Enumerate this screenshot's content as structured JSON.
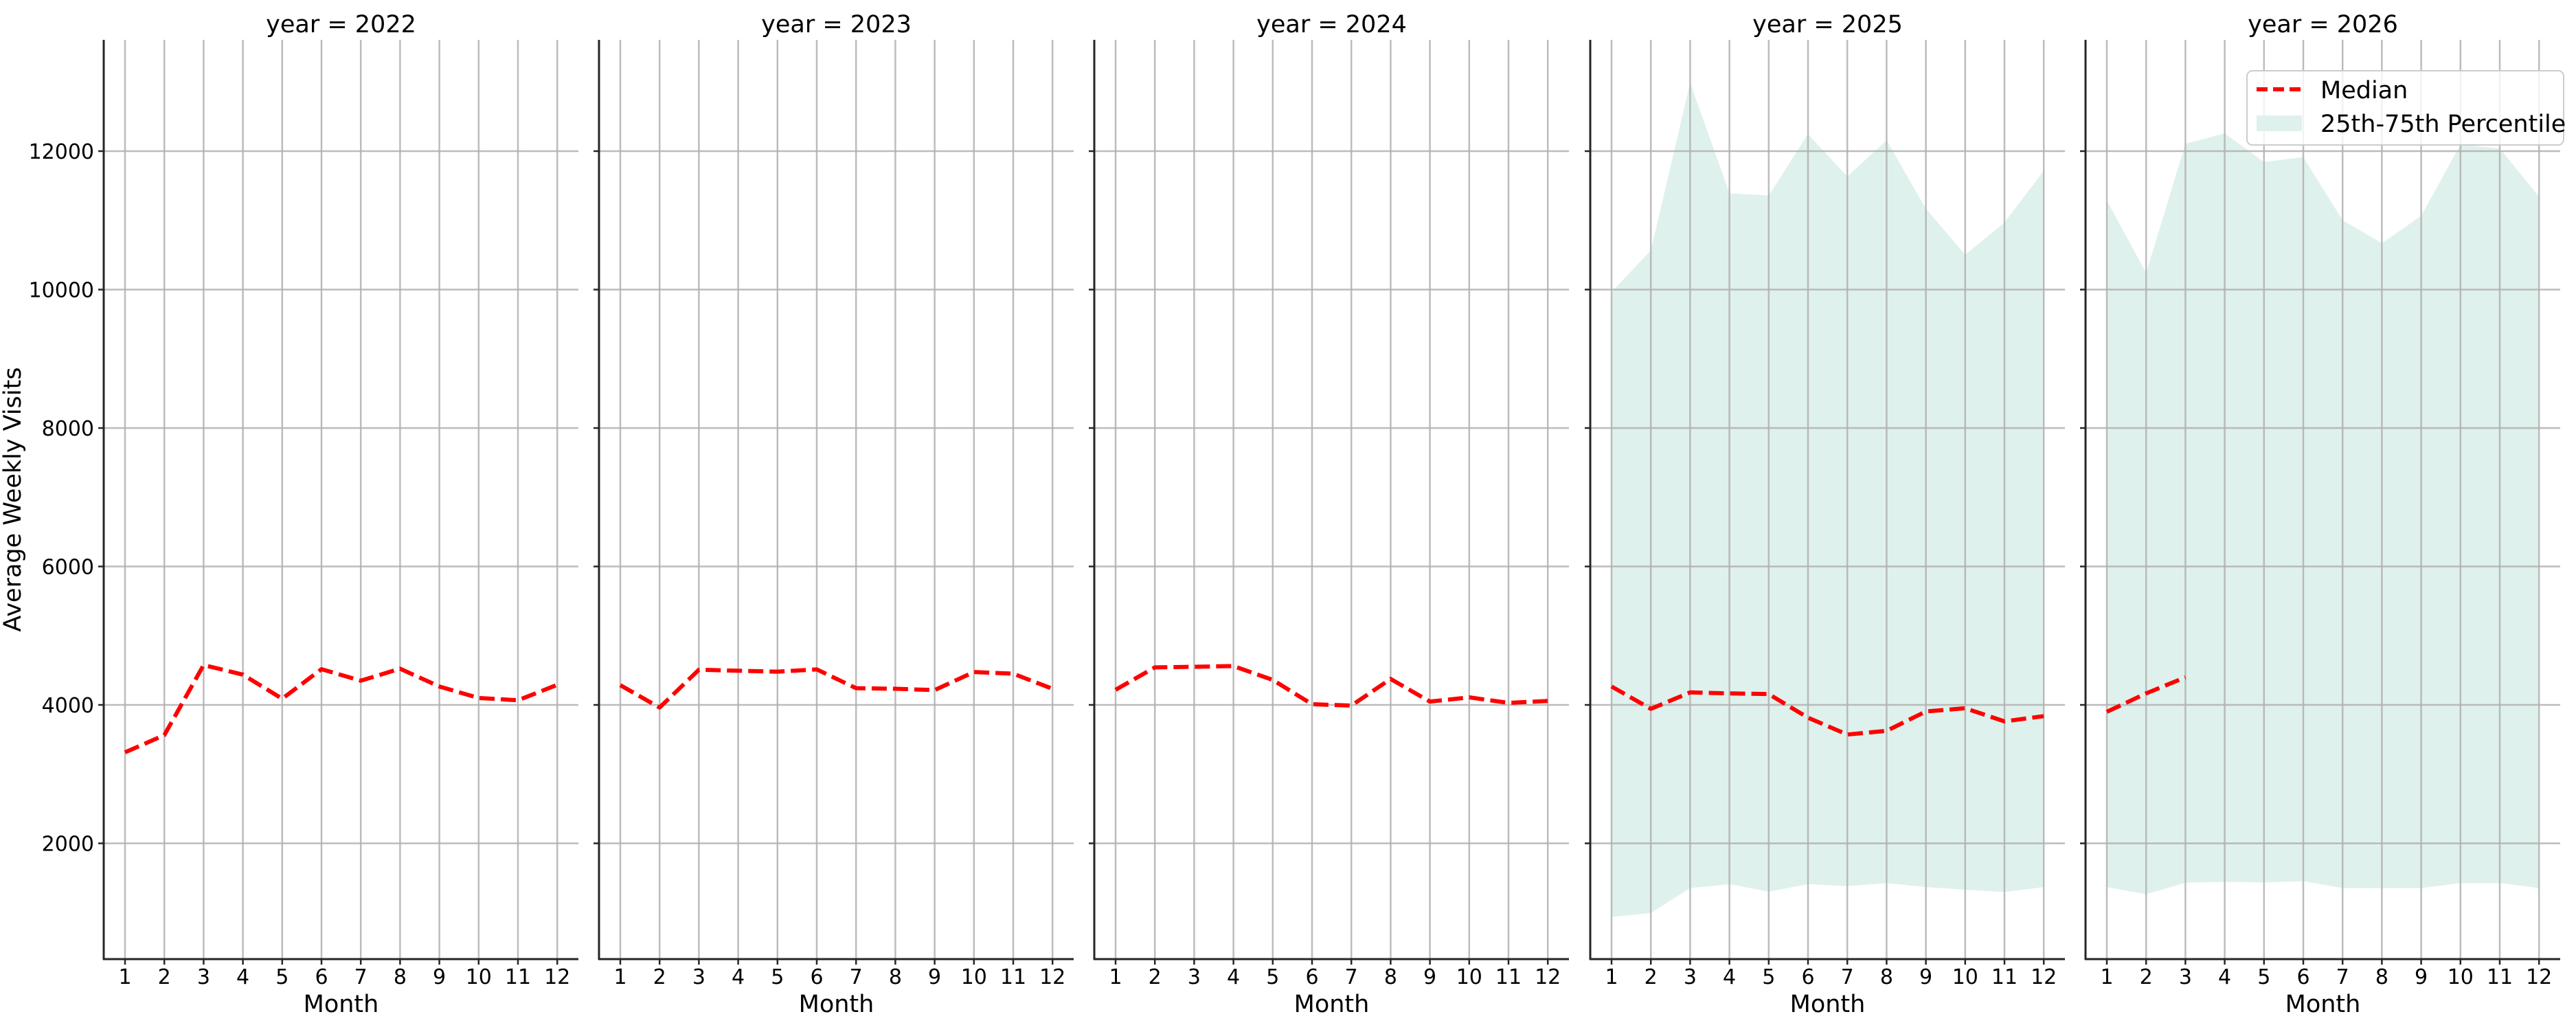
{
  "figure": {
    "ylabel": "Average Weekly Visits",
    "xlabel": "Month",
    "colors": {
      "median": "#ff0000",
      "band": "#dff1ec",
      "grid": "#b0b0b0",
      "spine": "#262626",
      "legend_border": "#cccccc"
    },
    "legend": {
      "items": [
        {
          "label": "Median",
          "kind": "line"
        },
        {
          "label": "25th-75th Percentile",
          "kind": "patch"
        }
      ]
    }
  },
  "chart_data": {
    "type": "line",
    "title": "",
    "xlabel": "Month",
    "ylabel": "Average Weekly Visits",
    "x": [
      1,
      2,
      3,
      4,
      5,
      6,
      7,
      8,
      9,
      10,
      11,
      12
    ],
    "yticks": [
      2000,
      4000,
      6000,
      8000,
      10000,
      12000
    ],
    "ylim": [
      330,
      13600
    ],
    "grid": true,
    "legend_position": "upper right (last panel)",
    "facets": [
      {
        "title": "year = 2022",
        "median": [
          3315,
          3563,
          4576,
          4437,
          4089,
          4516,
          4350,
          4523,
          4266,
          4100,
          4067,
          4290
        ],
        "p25": null,
        "p75": null
      },
      {
        "title": "year = 2023",
        "median": [
          4285,
          3962,
          4508,
          4494,
          4480,
          4513,
          4242,
          4233,
          4214,
          4475,
          4451,
          4233
        ],
        "p25": null,
        "p75": null
      },
      {
        "title": "year = 2024",
        "median": [
          4218,
          4542,
          4551,
          4561,
          4361,
          4010,
          3990,
          4375,
          4048,
          4109,
          4029,
          4057
        ],
        "p25": null,
        "p75": null
      },
      {
        "title": "year = 2025",
        "median": [
          4266,
          3943,
          4181,
          4166,
          4157,
          3815,
          3572,
          3625,
          3905,
          3952,
          3762,
          3838
        ],
        "p25": [
          936,
          993,
          1354,
          1411,
          1302,
          1411,
          1382,
          1425,
          1368,
          1330,
          1297,
          1368
        ],
        "p75": [
          9967,
          10565,
          12988,
          11392,
          11359,
          12247,
          11634,
          12157,
          11169,
          10504,
          10969,
          11715
        ]
      },
      {
        "title": "year = 2026",
        "median": [
          3900,
          4166,
          4399
        ],
        "p25": [
          1368,
          1264,
          1430,
          1444,
          1435,
          1454,
          1354,
          1354,
          1354,
          1425,
          1425,
          1354
        ],
        "p75": [
          11287,
          10242,
          12105,
          12257,
          11843,
          11914,
          11002,
          10670,
          11064,
          12095,
          12038,
          11344
        ]
      }
    ]
  }
}
